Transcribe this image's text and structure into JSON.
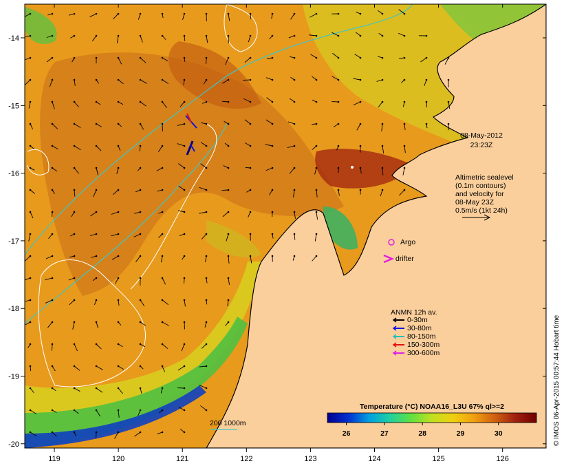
{
  "map": {
    "date_label": "08-May-2012",
    "time_label": "23:23Z",
    "altimetry_lines": [
      "Altimetric sealevel",
      "(0.1m contours)",
      "and velocity for",
      "08-May 23Z",
      "0.5m/s (1kt 24h)"
    ],
    "argo_label": "Argo",
    "drifter_label": "drifter",
    "scale_label": "200  1000m",
    "credit": "© IMOS 06-Apr-2015 00:57:44 Hobart time",
    "colors": {
      "land": "#fbcf9c",
      "coast": "#000000",
      "contour_cyan": "#3fc6c6",
      "sea_orange": "#e89a1c",
      "sea_dark": "#c86a10",
      "sea_yellow": "#d8d820",
      "sea_green": "#50d040",
      "sea_blue": "#1030c0",
      "argo": "#e020e0"
    },
    "x_ticks": [
      "119",
      "120",
      "121",
      "122",
      "123",
      "124",
      "125",
      "126"
    ],
    "y_ticks": [
      "-14",
      "-15",
      "-16",
      "-17",
      "-18",
      "-19",
      "-20"
    ],
    "anmn_legend": {
      "title": "ANMN 12h av.",
      "items": [
        {
          "label": "0-30m",
          "color": "#000000"
        },
        {
          "label": "30-80m",
          "color": "#1010e0"
        },
        {
          "label": "80-150m",
          "color": "#20c0c0"
        },
        {
          "label": "150-300m",
          "color": "#e01010"
        },
        {
          "label": "300-600m",
          "color": "#e020e0"
        }
      ]
    },
    "colorbar": {
      "title": "Temperature (°C) NOAA16_L3U 67% ql>=2",
      "ticks": [
        "26",
        "27",
        "28",
        "29",
        "30"
      ],
      "range": [
        25.5,
        31
      ],
      "stops": [
        "#000090",
        "#0030d0",
        "#00a0e0",
        "#20d0a0",
        "#60e040",
        "#c0e020",
        "#f0d010",
        "#f0a010",
        "#d06010",
        "#a02010",
        "#700000"
      ]
    }
  }
}
